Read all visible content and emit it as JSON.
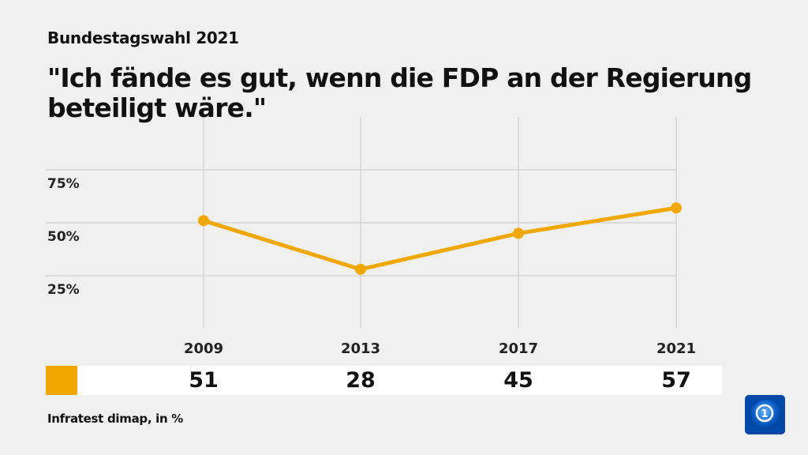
{
  "chart_data": {
    "type": "line",
    "subtitle": "Bundestagswahl 2021",
    "title": "\"Ich fände es gut, wenn die FDP an der Regierung beteiligt wäre.\"",
    "categories": [
      "2009",
      "2013",
      "2017",
      "2021"
    ],
    "values": [
      51,
      28,
      45,
      57
    ],
    "value_labels": [
      "51",
      "28",
      "45",
      "57"
    ],
    "yticks": [
      {
        "value": 25,
        "label": "25%"
      },
      {
        "value": 50,
        "label": "50%"
      },
      {
        "value": 75,
        "label": "75%"
      }
    ],
    "ylim": [
      0,
      100
    ],
    "grid": true,
    "color": "#f0a800",
    "source": "Infratest dimap, in %"
  },
  "logo": {
    "name": "tagesschau-logo",
    "text": "1"
  }
}
